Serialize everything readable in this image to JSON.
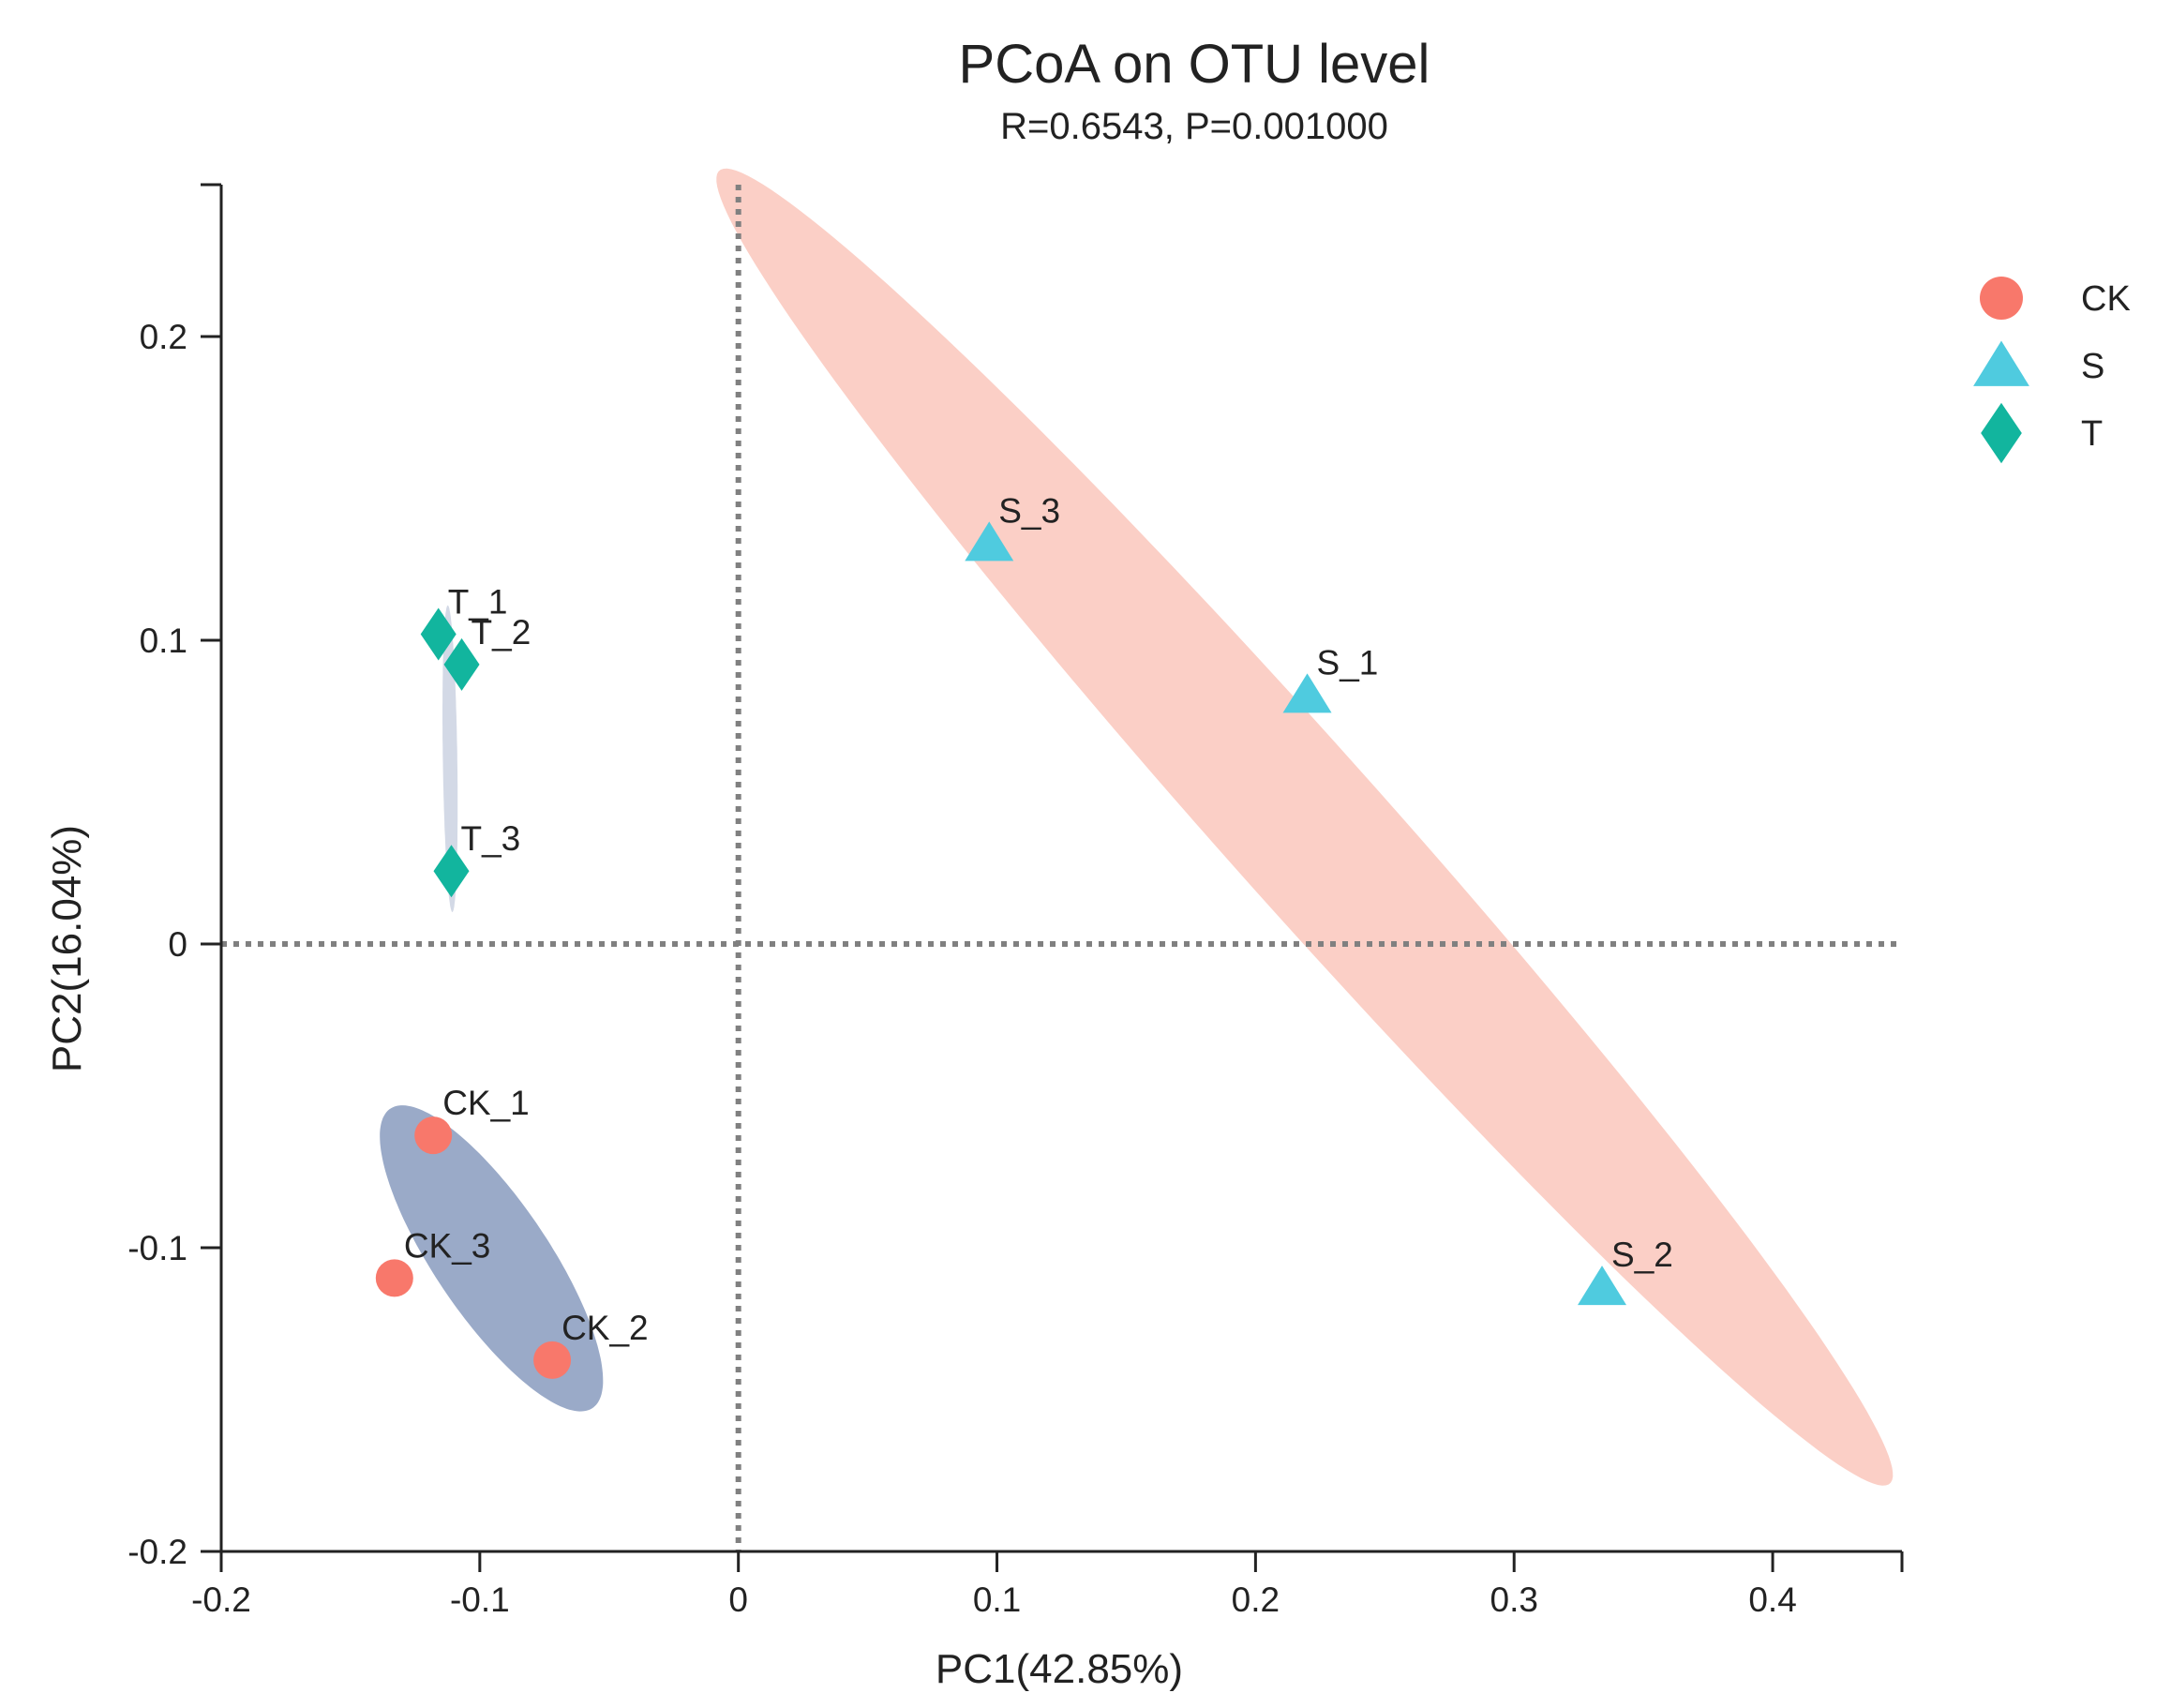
{
  "chart_data": {
    "type": "scatter",
    "title": "PCoA on OTU level",
    "subtitle": "R=0.6543, P=0.001000",
    "xlabel": "PC1(42.85%)",
    "ylabel": "PC2(16.04%)",
    "xlim": [
      -0.2,
      0.45
    ],
    "ylim": [
      -0.2,
      0.25
    ],
    "x_ticks": [
      -0.2,
      -0.1,
      0,
      0.1,
      0.2,
      0.3,
      0.4
    ],
    "x_tick_labels": [
      "-0.2",
      "-0.1",
      "0",
      "0.1",
      "0.2",
      "0.3",
      "0.4"
    ],
    "y_ticks": [
      -0.2,
      -0.1,
      0,
      0.1,
      0.2
    ],
    "y_tick_labels": [
      "-0.2",
      "-0.1",
      "0",
      "0.1",
      "0.2"
    ],
    "grid": false,
    "reference_lines": {
      "x": 0,
      "y": 0,
      "style": "dotted"
    },
    "legend_position": "top-right",
    "series": [
      {
        "name": "CK",
        "marker": "circle",
        "color": "#F8786B",
        "ellipse_color": "#9AAAC8",
        "points": [
          {
            "label": "CK_1",
            "x": -0.118,
            "y": -0.063
          },
          {
            "label": "CK_2",
            "x": -0.072,
            "y": -0.137
          },
          {
            "label": "CK_3",
            "x": -0.133,
            "y": -0.11
          }
        ],
        "ellipse": {
          "cx": -0.0955,
          "cy": -0.1035,
          "rx": 0.063,
          "ry": 0.0208,
          "angle_deg": -50.5
        }
      },
      {
        "name": "S",
        "marker": "triangle",
        "color": "#4FCBDF",
        "ellipse_color": "#FBCFC6",
        "points": [
          {
            "label": "S_1",
            "x": 0.22,
            "y": 0.082
          },
          {
            "label": "S_2",
            "x": 0.334,
            "y": -0.113
          },
          {
            "label": "S_3",
            "x": 0.097,
            "y": 0.132
          }
        ],
        "ellipse": {
          "cx": 0.219,
          "cy": 0.0385,
          "rx": 0.313,
          "ry": 0.0283,
          "angle_deg": -43.6
        }
      },
      {
        "name": "T",
        "marker": "diamond",
        "color": "#12B59E",
        "ellipse_color": "#D3D9E6",
        "points": [
          {
            "label": "T_1",
            "x": -0.116,
            "y": 0.102
          },
          {
            "label": "T_2",
            "x": -0.107,
            "y": 0.092
          },
          {
            "label": "T_3",
            "x": -0.111,
            "y": 0.024
          }
        ],
        "ellipse": {
          "cx": -0.1115,
          "cy": 0.061,
          "rx": 0.0505,
          "ry": 0.0028,
          "angle_deg": -89.0
        }
      }
    ]
  }
}
